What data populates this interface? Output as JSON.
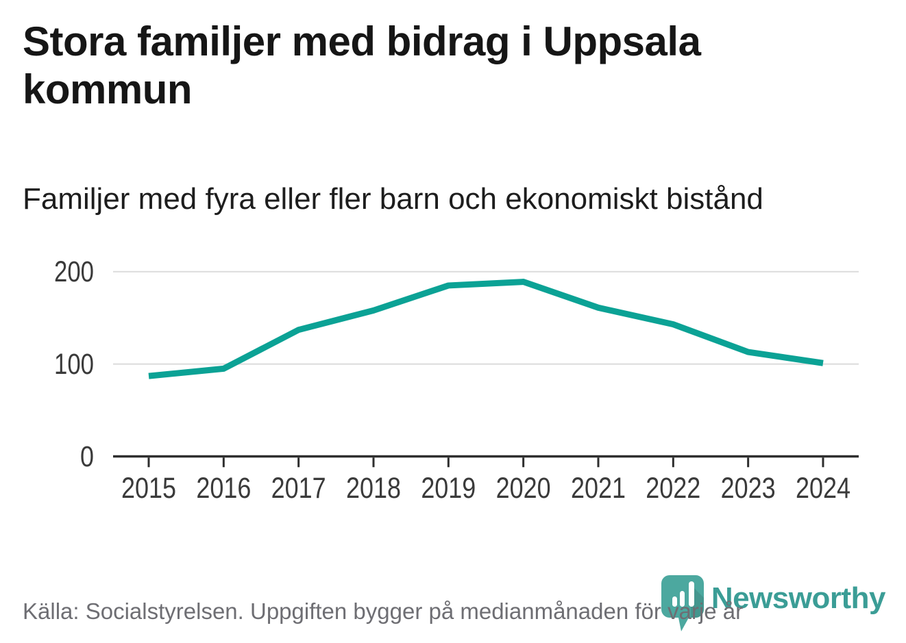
{
  "title": "Stora familjer med bidrag i Uppsala kommun",
  "subtitle": "Familjer med fyra eller fler barn och ekonomiskt bistånd",
  "source": "Källa: Socialstyrelsen. Uppgiften bygger på medianmånaden för varje år",
  "brand": {
    "name": "Newsworthy",
    "icon": "newsworthy-speech-bubble-bar-chart-icon",
    "text_color": "#3B9D96",
    "icon_color": "#4CA89F",
    "icon_bar_color": "#FFFFFF"
  },
  "colors": {
    "background": "#FFFFFF",
    "line": "#0BA295",
    "grid": "#DBDBDB",
    "axis": "#2E2E2E",
    "tick_label": "#3A3A3A",
    "title_text": "#161616",
    "source_text": "#6E6E73"
  },
  "chart_data": {
    "type": "line",
    "title": "Stora familjer med bidrag i Uppsala kommun",
    "subtitle": "Familjer med fyra eller fler barn och ekonomiskt bistånd",
    "x": [
      2015,
      2016,
      2017,
      2018,
      2019,
      2020,
      2021,
      2022,
      2023,
      2024
    ],
    "series": [
      {
        "name": "Familjer med fyra eller fler barn och ekonomiskt bistånd",
        "color": "#0BA295",
        "line_width": 9,
        "values": [
          87,
          95,
          137,
          158,
          185,
          189,
          161,
          143,
          113,
          101
        ]
      }
    ],
    "xlabel": "",
    "ylabel": "",
    "ylim": [
      0,
      200
    ],
    "yticks": [
      0,
      100,
      200
    ],
    "grid": "horizontal",
    "legend": "none",
    "source": "Källa: Socialstyrelsen. Uppgiften bygger på medianmånaden för varje år"
  }
}
